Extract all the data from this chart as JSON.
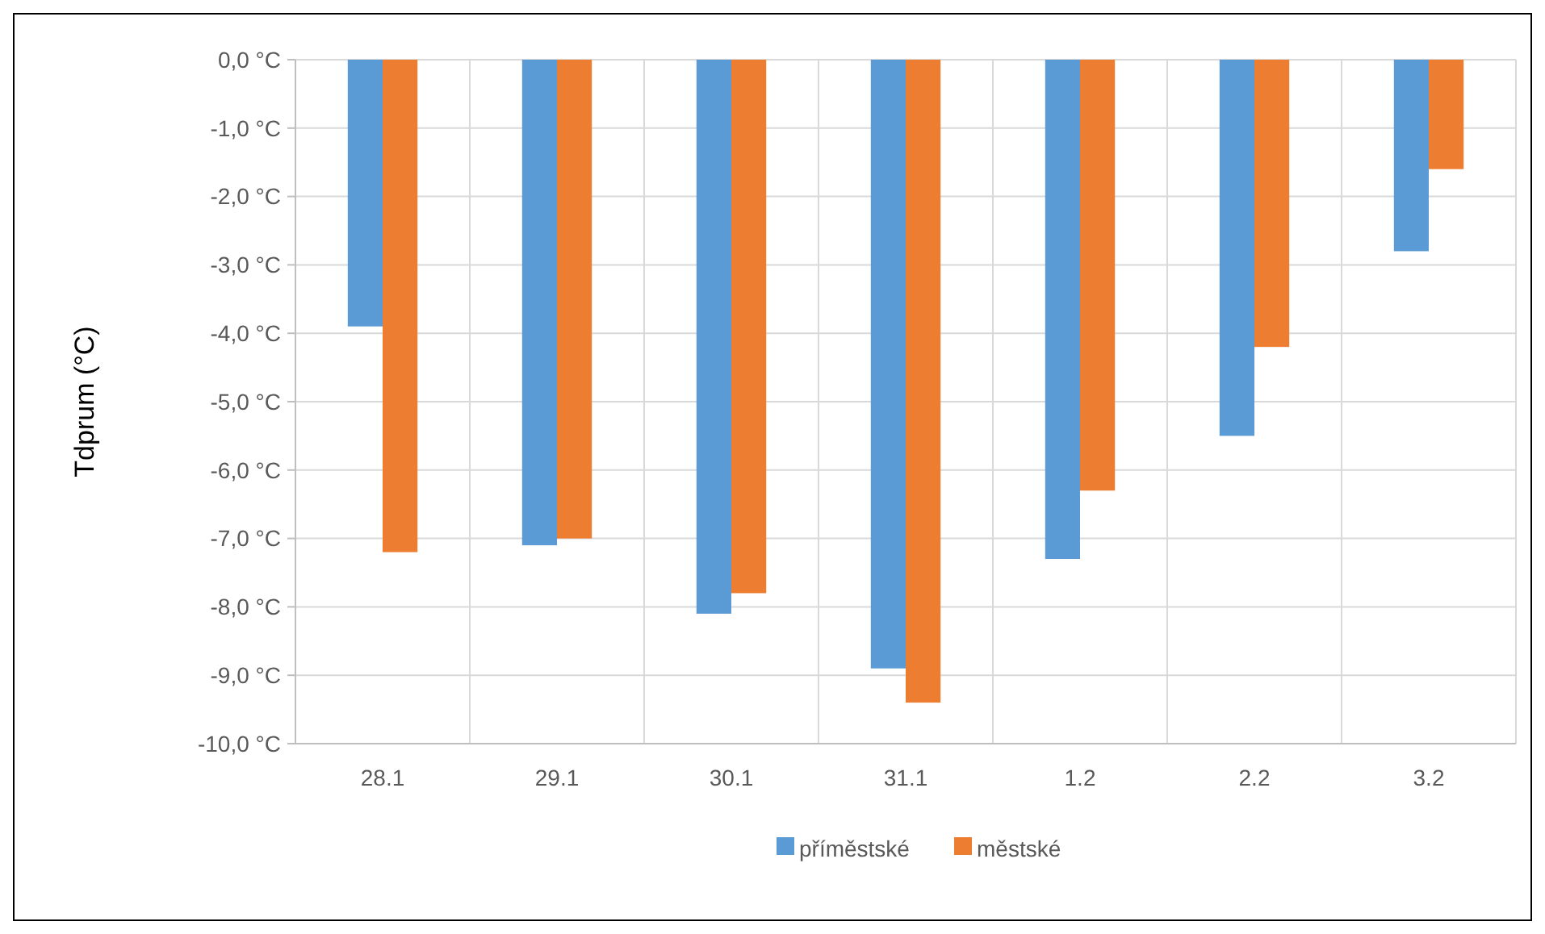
{
  "chart_data": {
    "type": "bar",
    "ylabel": "Tdprum (°C)",
    "categories": [
      "28.1",
      "29.1",
      "30.1",
      "31.1",
      "1.2",
      "2.2",
      "3.2"
    ],
    "series": [
      {
        "name": "příměstské",
        "color": "#5b9bd5",
        "values": [
          -3.9,
          -7.1,
          -8.1,
          -8.9,
          -7.3,
          -5.5,
          -2.8
        ]
      },
      {
        "name": "městské",
        "color": "#ed7d31",
        "values": [
          -7.2,
          -7.0,
          -7.8,
          -9.4,
          -6.3,
          -4.2,
          -1.6
        ]
      }
    ],
    "ylim": [
      -10,
      0
    ],
    "yticks": [
      {
        "value": 0,
        "label": "0,0 °C"
      },
      {
        "value": -1,
        "label": "-1,0 °C"
      },
      {
        "value": -2,
        "label": "-2,0 °C"
      },
      {
        "value": -3,
        "label": "-3,0 °C"
      },
      {
        "value": -4,
        "label": "-4,0 °C"
      },
      {
        "value": -5,
        "label": "-5,0 °C"
      },
      {
        "value": -6,
        "label": "-6,0 °C"
      },
      {
        "value": -7,
        "label": "-7,0 °C"
      },
      {
        "value": -8,
        "label": "-8,0 °C"
      },
      {
        "value": -9,
        "label": "-9,0 °C"
      },
      {
        "value": -10,
        "label": "-10,0 °C"
      }
    ],
    "grid": true,
    "legend": "bottom"
  }
}
